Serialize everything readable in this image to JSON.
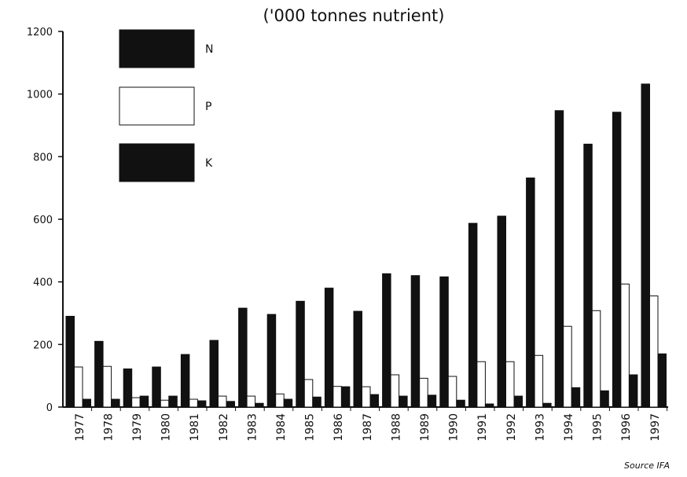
{
  "chart_data": {
    "type": "bar",
    "title": "('000 tonnes nutrient)",
    "xlabel": "",
    "ylabel": "",
    "ylim": [
      0,
      1200
    ],
    "yticks": [
      0,
      200,
      400,
      600,
      800,
      1000,
      1200
    ],
    "grid": false,
    "legend_position": "top-left",
    "categories": [
      "1977",
      "1978",
      "1979",
      "1980",
      "1981",
      "1982",
      "1983",
      "1984",
      "1985",
      "1986",
      "1987",
      "1988",
      "1989",
      "1990",
      "1991",
      "1992",
      "1993",
      "1994",
      "1995",
      "1996",
      "1997"
    ],
    "series": [
      {
        "name": "N",
        "color": "#111111",
        "values": [
          290,
          210,
          122,
          128,
          168,
          213,
          316,
          296,
          338,
          380,
          306,
          426,
          420,
          416,
          587,
          610,
          732,
          947,
          840,
          942,
          1032
        ]
      },
      {
        "name": "P",
        "color": "#ffffff",
        "values": [
          128,
          130,
          30,
          22,
          25,
          35,
          35,
          42,
          88,
          66,
          65,
          103,
          92,
          98,
          145,
          145,
          165,
          258,
          308,
          393,
          355
        ]
      },
      {
        "name": "K",
        "color": "#111111",
        "values": [
          25,
          25,
          35,
          35,
          20,
          18,
          12,
          25,
          32,
          65,
          40,
          35,
          38,
          22,
          10,
          35,
          12,
          62,
          52,
          103,
          170
        ]
      }
    ],
    "source": "Source IFA"
  }
}
